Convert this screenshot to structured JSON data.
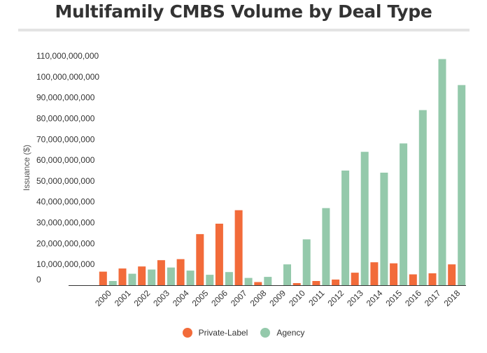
{
  "chart_data": {
    "type": "bar",
    "title": "Multifamily CMBS Volume by Deal Type",
    "ylabel": "Issuance ($)",
    "xlabel": "",
    "ylim": [
      0,
      110000000000
    ],
    "yticks": [
      0,
      10000000000,
      20000000000,
      30000000000,
      40000000000,
      50000000000,
      60000000000,
      70000000000,
      80000000000,
      90000000000,
      100000000000,
      110000000000
    ],
    "ytick_labels": [
      "0",
      "10,000,000,000",
      "20,000,000,000",
      "30,000,000,000",
      "40,000,000,000",
      "50,000,000,000",
      "60,000,000,000",
      "70,000,000,000",
      "80,000,000,000",
      "90,000,000,000",
      "100,000,000,000",
      "110,000,000,000"
    ],
    "categories": [
      "2000",
      "2001",
      "2002",
      "2003",
      "2004",
      "2005",
      "2006",
      "2007",
      "2008",
      "2009",
      "2010",
      "2011",
      "2012",
      "2013",
      "2014",
      "2015",
      "2016",
      "2017",
      "2018"
    ],
    "series": [
      {
        "name": "Private-Label",
        "color": "#f26b3a",
        "values": [
          6500000000,
          8000000000,
          9000000000,
          12000000000,
          12500000000,
          24500000000,
          29500000000,
          36000000000,
          1500000000,
          0,
          1000000000,
          2000000000,
          2700000000,
          6000000000,
          11000000000,
          10500000000,
          5200000000,
          5700000000,
          10000000000
        ]
      },
      {
        "name": "Agency",
        "color": "#94c9ab",
        "values": [
          2000000000,
          5500000000,
          7500000000,
          8500000000,
          7000000000,
          5000000000,
          6300000000,
          3500000000,
          4000000000,
          10000000000,
          22000000000,
          37000000000,
          55000000000,
          64000000000,
          54000000000,
          68000000000,
          84000000000,
          108500000000,
          96000000000
        ]
      }
    ],
    "legend": {
      "position": "bottom"
    },
    "grid": false
  }
}
